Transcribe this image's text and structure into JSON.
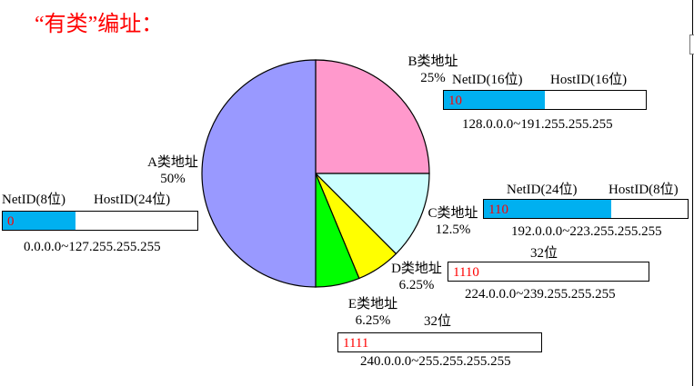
{
  "title": "“有类”编址：",
  "chart_data": {
    "type": "pie",
    "slices": [
      {
        "name": "A类地址",
        "value": 50,
        "label": "50%",
        "color": "#9999ff"
      },
      {
        "name": "B类地址",
        "value": 25,
        "label": "25%",
        "color": "#ff99cc"
      },
      {
        "name": "C类地址",
        "value": 12.5,
        "label": "12.5%",
        "color": "#ccffff"
      },
      {
        "name": "D类地址",
        "value": 6.25,
        "label": "6.25%",
        "color": "#ffff00"
      },
      {
        "name": "E类地址",
        "value": 6.25,
        "label": "6.25%",
        "color": "#00ff00"
      }
    ],
    "start": "12 o'clock",
    "direction": "clockwise",
    "slice_order": [
      "B类地址",
      "C类地址",
      "D类地址",
      "E类地址",
      "A类地址"
    ]
  },
  "classes": {
    "a": {
      "net": "NetID(8位)",
      "host": "HostID(24位)",
      "code": "0",
      "range": "0.0.0.0~127.255.255.255",
      "net_fraction": 0.375
    },
    "b": {
      "net": "NetID(16位)",
      "host": "HostID(16位)",
      "code": "10",
      "range": "128.0.0.0~191.255.255.255",
      "net_fraction": 0.5
    },
    "c": {
      "net": "NetID(24位)",
      "host": "HostID(8位)",
      "code": "110",
      "range": "192.0.0.0~223.255.255.255",
      "net_fraction": 0.625
    },
    "d": {
      "bits": "32位",
      "code": "1110",
      "range": "224.0.0.0~239.255.255.255"
    },
    "e": {
      "bits": "32位",
      "code": "1111",
      "range": "240.0.0.0~255.255.255.255"
    }
  },
  "colors": {
    "title": "#ff0000",
    "netid_fill": "#00b0f0",
    "code_text": "#ff0000"
  }
}
